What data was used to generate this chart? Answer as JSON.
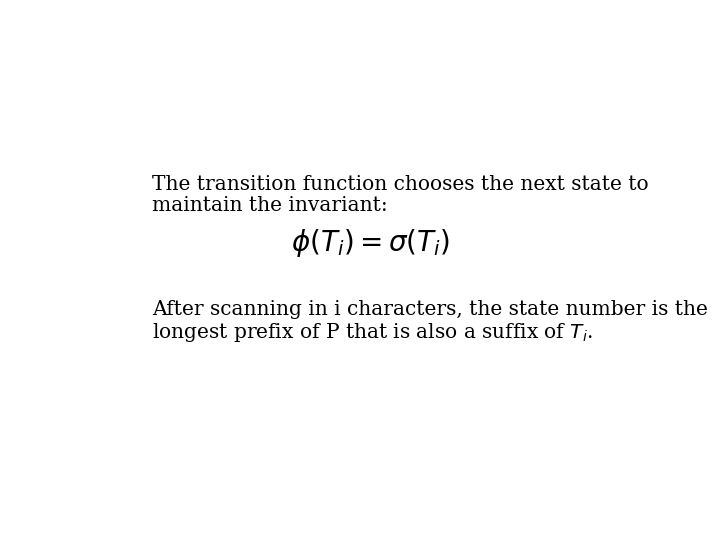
{
  "background_color": "#ffffff",
  "text1_line1": "The transition function chooses the next state to",
  "text1_line2": "maintain the invariant:",
  "formula": "$\\phi(T_i) = \\sigma(T_i)$",
  "text2_line1": "After scanning in i characters, the state number is the",
  "text2_line2": "longest prefix of P that is also a suffix of $T_i$.",
  "text_color": "#000000",
  "text_fontsize": 14.5,
  "formula_fontsize": 20,
  "font_family": "serif"
}
